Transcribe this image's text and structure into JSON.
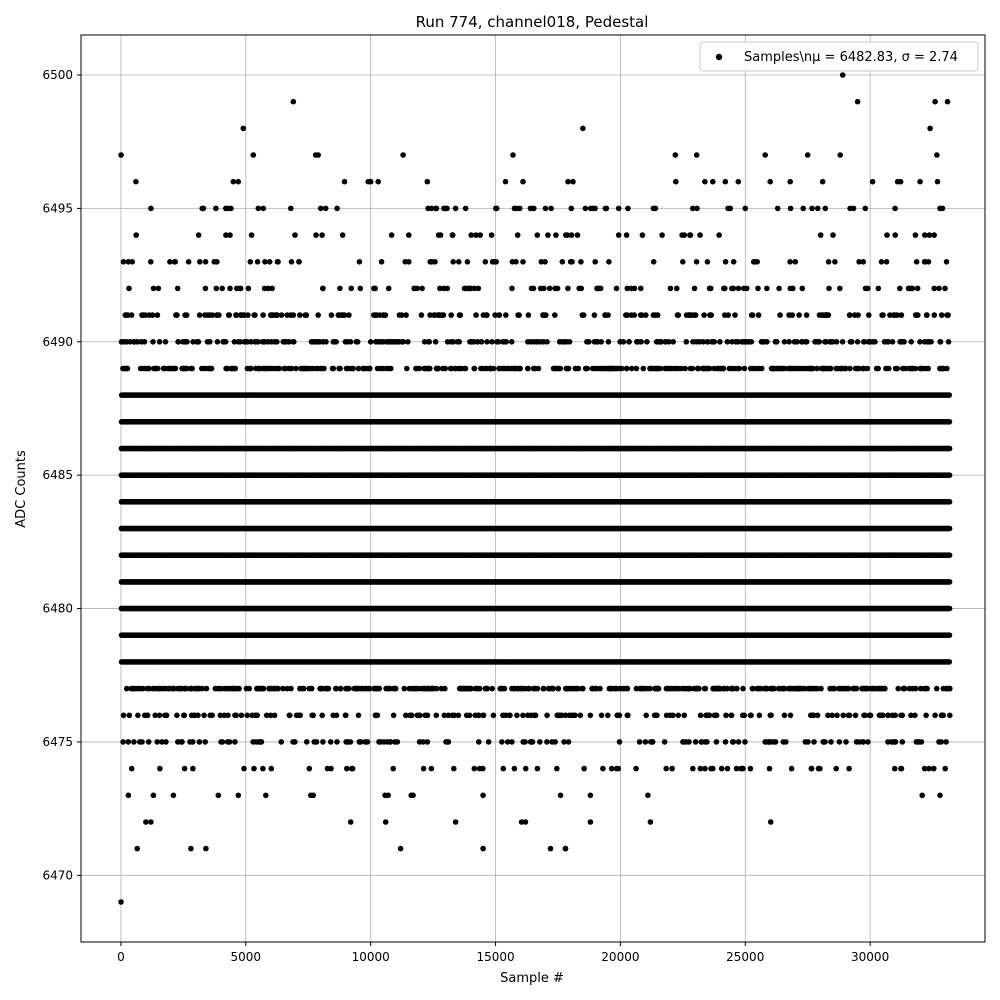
{
  "chart_data": {
    "type": "scatter",
    "title": "Run 774, channel018, Pedestal",
    "xlabel": "Sample #",
    "ylabel": "ADC Counts",
    "xlim": [
      -1600,
      34600
    ],
    "ylim": [
      6467.5,
      6501.5
    ],
    "x_ticks": [
      0,
      5000,
      10000,
      15000,
      20000,
      25000,
      30000
    ],
    "y_ticks": [
      6470,
      6475,
      6480,
      6485,
      6490,
      6495,
      6500
    ],
    "grid": true,
    "legend_position": "top-right",
    "marker_color": "#000000",
    "series": [
      {
        "name": "Samples\\nμ = 6482.83, σ = 2.74",
        "x_range": [
          0,
          33200
        ],
        "level_counts": {
          "6469": 1,
          "6470": 0,
          "6471": 8,
          "6472": 10,
          "6473": 18,
          "6474": 60,
          "6475": 130,
          "6476": 170,
          "6477": 380,
          "6478": 600,
          "6479": 800,
          "6480": 1000,
          "6481": 1000,
          "6482": 1000,
          "6483": 1000,
          "6484": 1000,
          "6485": 1000,
          "6486": 950,
          "6487": 750,
          "6488": 550,
          "6489": 360,
          "6490": 240,
          "6491": 170,
          "6492": 90,
          "6493": 70,
          "6494": 45,
          "6495": 60,
          "6496": 25,
          "6497": 12,
          "6498": 3,
          "6499": 4,
          "6500": 1
        },
        "points": [
          [
            0,
            6469
          ],
          [
            2800,
            6471
          ],
          [
            3400,
            6471
          ],
          [
            11200,
            6471
          ],
          [
            14500,
            6471
          ],
          [
            17200,
            6471
          ],
          [
            17800,
            6471
          ],
          [
            650,
            6471
          ],
          [
            1000,
            6472
          ],
          [
            1200,
            6472
          ],
          [
            9200,
            6472
          ],
          [
            10600,
            6472
          ],
          [
            13400,
            6472
          ],
          [
            16200,
            6472
          ],
          [
            18800,
            6472
          ],
          [
            21200,
            6472
          ],
          [
            300,
            6473
          ],
          [
            1300,
            6473
          ],
          [
            2100,
            6473
          ],
          [
            3900,
            6473
          ],
          [
            4700,
            6473
          ],
          [
            5800,
            6473
          ],
          [
            7700,
            6473
          ],
          [
            10700,
            6473
          ],
          [
            11700,
            6473
          ],
          [
            14500,
            6473
          ],
          [
            17600,
            6473
          ],
          [
            18800,
            6473
          ],
          [
            21100,
            6473
          ],
          [
            32800,
            6473
          ],
          [
            28900,
            6500
          ],
          [
            6900,
            6499
          ],
          [
            29500,
            6499
          ],
          [
            32600,
            6499
          ],
          [
            33100,
            6499
          ],
          [
            4900,
            6498
          ],
          [
            18500,
            6498
          ],
          [
            32400,
            6498
          ],
          [
            5300,
            6497
          ],
          [
            7800,
            6497
          ],
          [
            7900,
            6497
          ],
          [
            11300,
            6497
          ],
          [
            15700,
            6497
          ],
          [
            22200,
            6497
          ],
          [
            25800,
            6497
          ],
          [
            27500,
            6497
          ],
          [
            28800,
            6497
          ],
          [
            600,
            6496
          ],
          [
            4500,
            6496
          ],
          [
            4700,
            6496
          ],
          [
            9900,
            6496
          ],
          [
            10000,
            6496
          ],
          [
            10300,
            6496
          ],
          [
            15400,
            6496
          ],
          [
            16100,
            6496
          ],
          [
            17900,
            6496
          ],
          [
            18100,
            6496
          ],
          [
            23700,
            6496
          ],
          [
            24200,
            6496
          ],
          [
            26000,
            6496
          ],
          [
            26800,
            6496
          ],
          [
            28100,
            6496
          ],
          [
            30100,
            6496
          ],
          [
            31100,
            6496
          ],
          [
            32000,
            6496
          ],
          [
            1200,
            6495
          ],
          [
            3300,
            6495
          ],
          [
            3800,
            6495
          ],
          [
            4200,
            6495
          ],
          [
            5500,
            6495
          ],
          [
            5700,
            6495
          ],
          [
            6800,
            6495
          ],
          [
            8000,
            6495
          ],
          [
            8200,
            6495
          ],
          [
            12300,
            6495
          ],
          [
            12600,
            6495
          ],
          [
            13400,
            6495
          ],
          [
            13800,
            6495
          ],
          [
            16400,
            6495
          ],
          [
            17000,
            6495
          ],
          [
            18600,
            6495
          ],
          [
            18900,
            6495
          ],
          [
            19400,
            6495
          ],
          [
            20300,
            6495
          ],
          [
            21400,
            6495
          ],
          [
            22900,
            6495
          ],
          [
            24400,
            6495
          ],
          [
            25000,
            6495
          ],
          [
            26300,
            6495
          ],
          [
            27900,
            6495
          ],
          [
            29200,
            6495
          ],
          [
            31000,
            6495
          ],
          [
            32800,
            6495
          ]
        ]
      }
    ]
  }
}
